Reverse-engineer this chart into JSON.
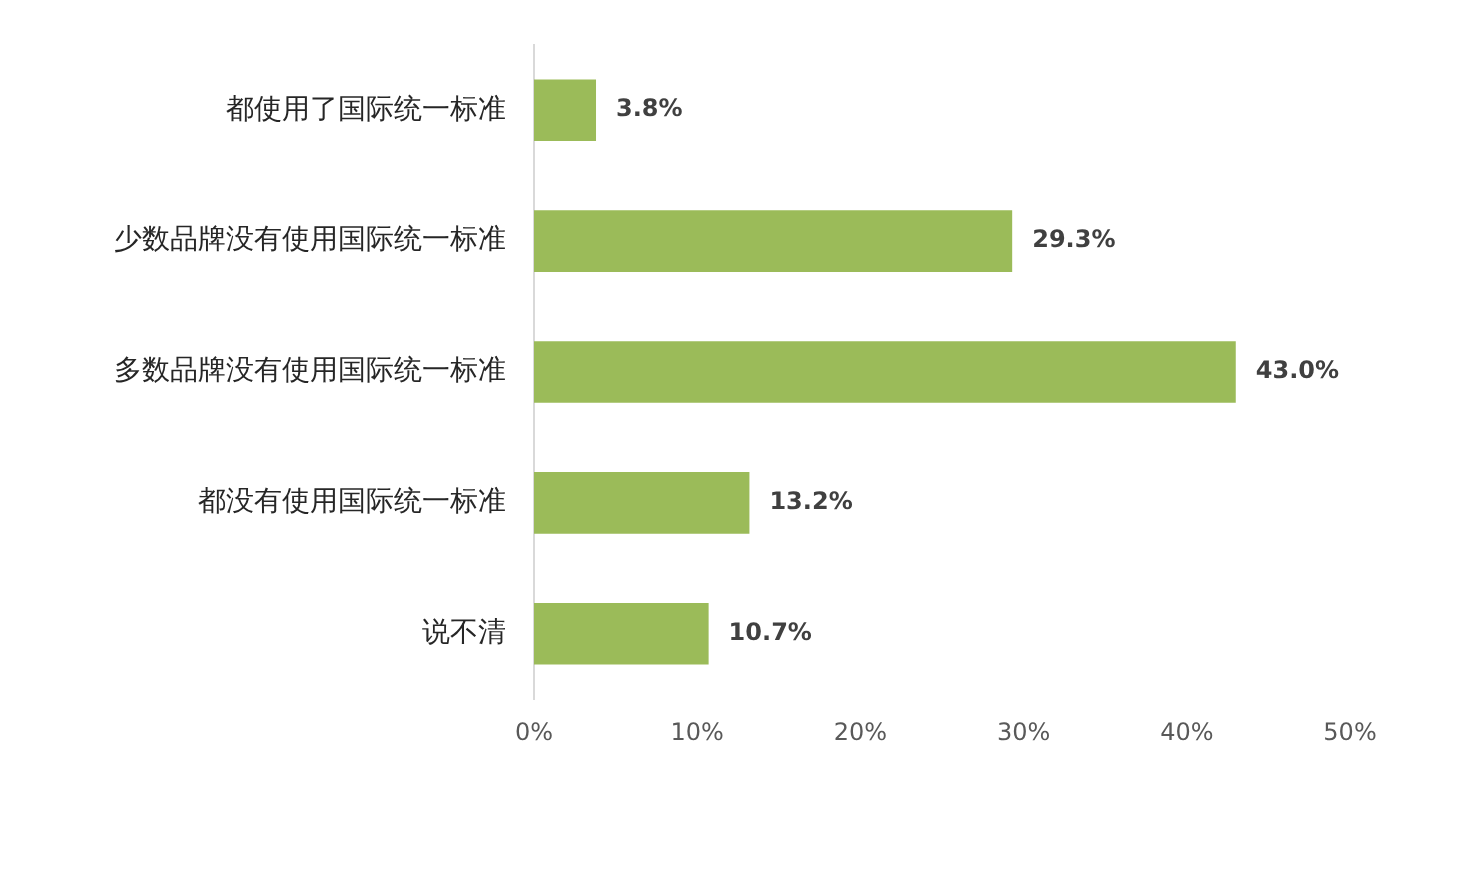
{
  "chart_data": {
    "type": "bar",
    "orientation": "horizontal",
    "categories": [
      "都使用了国际统一标准",
      "少数品牌没有使用国际统一标准",
      "多数品牌没有使用国际统一标准",
      "都没有使用国际统一标准",
      "说不清"
    ],
    "values": [
      3.8,
      29.3,
      43.0,
      13.2,
      10.7
    ],
    "value_labels": [
      "3.8%",
      "29.3%",
      "43.0%",
      "13.2%",
      "10.7%"
    ],
    "color": "#9bbb59",
    "xlim": [
      0,
      50
    ],
    "xticks": [
      {
        "value": 0,
        "label": "0%"
      },
      {
        "value": 10,
        "label": "10%"
      },
      {
        "value": 20,
        "label": "20%"
      },
      {
        "value": 30,
        "label": "30%"
      },
      {
        "value": 40,
        "label": "40%"
      },
      {
        "value": 50,
        "label": "50%"
      }
    ],
    "grid": false,
    "legend": false
  }
}
